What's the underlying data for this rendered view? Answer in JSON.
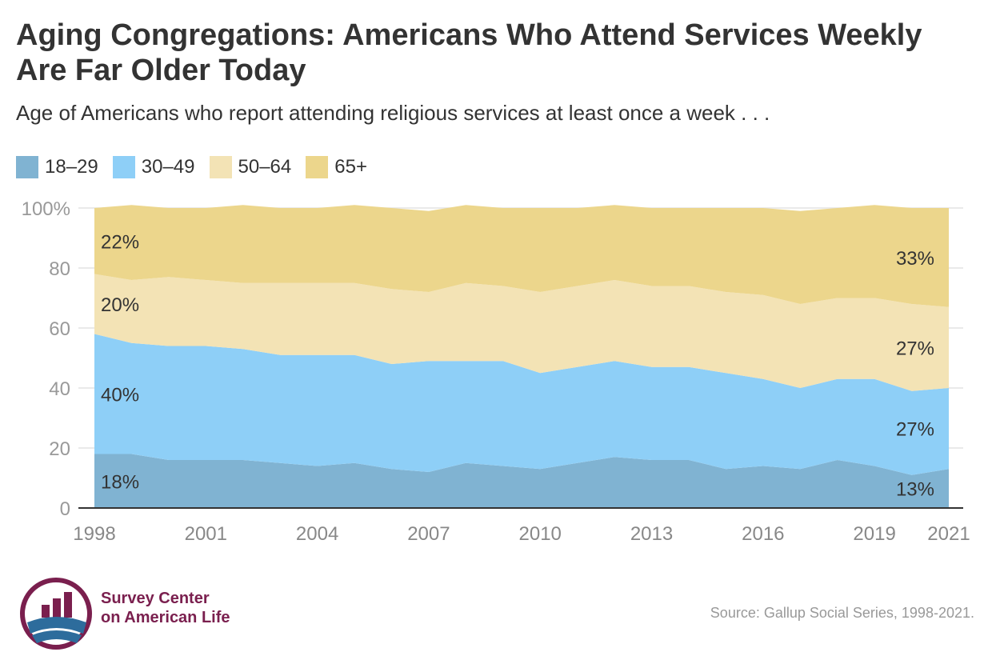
{
  "title": "Aging Congregations: Americans Who Attend Services Weekly Are Far Older Today",
  "subtitle": "Age of Americans who report attending religious services at least once a week . . .",
  "source": "Source: Gallup Social Series, 1998-2021.",
  "logo": {
    "line1": "Survey Center",
    "line2": "on American Life"
  },
  "colors": {
    "18-29": "#80b3d2",
    "30-49": "#8ecff7",
    "50-64": "#f3e3b5",
    "65+": "#ecd68c",
    "grid": "#e3e3e3",
    "axis": "#333333",
    "tick_text": "#999999",
    "logo_maroon": "#7a1f4e",
    "logo_blue": "#2d6c9c"
  },
  "chart_data": {
    "type": "area",
    "stacked": true,
    "x": [
      1998,
      1999,
      2000,
      2001,
      2002,
      2003,
      2004,
      2005,
      2006,
      2007,
      2008,
      2009,
      2010,
      2011,
      2012,
      2013,
      2014,
      2015,
      2016,
      2017,
      2018,
      2019,
      2020,
      2021
    ],
    "x_ticks": [
      "1998",
      "2001",
      "2004",
      "2007",
      "2010",
      "2013",
      "2016",
      "2019",
      "2021"
    ],
    "ylim": [
      0,
      100
    ],
    "y_ticks": [
      "0",
      "20",
      "40",
      "60",
      "80",
      "100%"
    ],
    "grid": true,
    "legend_position": "top-left",
    "series": [
      {
        "name": "18–29",
        "values": [
          18,
          18,
          16,
          16,
          16,
          15,
          14,
          15,
          13,
          12,
          15,
          14,
          13,
          15,
          17,
          16,
          16,
          13,
          14,
          13,
          16,
          14,
          11,
          13
        ]
      },
      {
        "name": "30–49",
        "values": [
          40,
          37,
          38,
          38,
          37,
          36,
          37,
          36,
          35,
          37,
          34,
          35,
          32,
          32,
          32,
          31,
          31,
          32,
          29,
          27,
          27,
          29,
          28,
          27
        ]
      },
      {
        "name": "50–64",
        "values": [
          20,
          21,
          23,
          22,
          22,
          24,
          24,
          24,
          25,
          23,
          26,
          25,
          27,
          27,
          27,
          27,
          27,
          27,
          28,
          28,
          27,
          27,
          29,
          27
        ]
      },
      {
        "name": "65+",
        "values": [
          22,
          25,
          23,
          24,
          26,
          25,
          25,
          26,
          27,
          27,
          26,
          26,
          28,
          26,
          25,
          26,
          26,
          28,
          29,
          31,
          30,
          31,
          32,
          33
        ]
      }
    ],
    "annotations": [
      {
        "text": "18%",
        "series": 0,
        "year": 1998
      },
      {
        "text": "40%",
        "series": 1,
        "year": 1998
      },
      {
        "text": "20%",
        "series": 2,
        "year": 1998
      },
      {
        "text": "22%",
        "series": 3,
        "year": 1998
      },
      {
        "text": "13%",
        "series": 0,
        "year": 2021
      },
      {
        "text": "27%",
        "series": 1,
        "year": 2021
      },
      {
        "text": "27%",
        "series": 2,
        "year": 2021
      },
      {
        "text": "33%",
        "series": 3,
        "year": 2021
      }
    ]
  }
}
